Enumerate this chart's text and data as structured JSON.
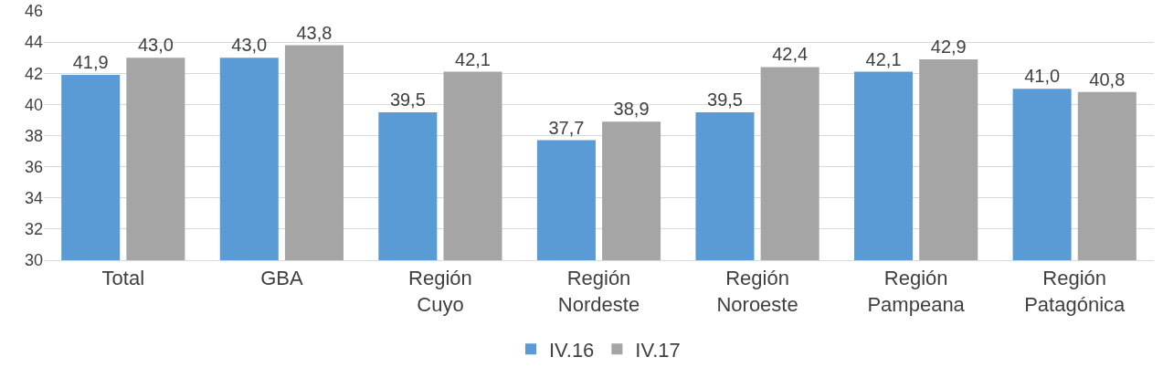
{
  "chart_data": {
    "type": "bar",
    "categories": [
      "Total",
      "GBA",
      "Región Cuyo",
      "Región Nordeste",
      "Región Noroeste",
      "Región Pampeana",
      "Región Patagónica"
    ],
    "series": [
      {
        "name": "IV.16",
        "color": "#5b9bd5",
        "values": [
          41.9,
          43.0,
          39.5,
          37.7,
          39.5,
          42.1,
          41.0
        ],
        "value_labels": [
          "41,9",
          "43,0",
          "39,5",
          "37,7",
          "39,5",
          "42,1",
          "41,0"
        ]
      },
      {
        "name": "IV.17",
        "color": "#a5a5a5",
        "values": [
          43.0,
          43.8,
          42.1,
          38.9,
          42.4,
          42.9,
          40.8
        ],
        "value_labels": [
          "43,0",
          "43,8",
          "42,1",
          "38,9",
          "42,4",
          "42,9",
          "40,8"
        ]
      }
    ],
    "ylim": [
      30,
      46
    ],
    "yticks": [
      30,
      32,
      34,
      36,
      38,
      40,
      42,
      44,
      46
    ],
    "grid": "y",
    "legend": "bottom"
  }
}
